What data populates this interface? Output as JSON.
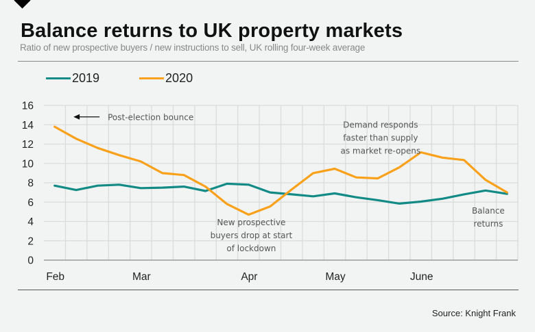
{
  "header": {
    "title": "Balance returns to UK property markets",
    "subtitle": "Ratio of new prospective buyers / new instructions to sell, UK rolling four-week average"
  },
  "legend": [
    {
      "label": "2019",
      "color": "#128a86"
    },
    {
      "label": "2020",
      "color": "#f9a11b"
    }
  ],
  "footer": {
    "source": "Source: Knight Frank"
  },
  "chart_data": {
    "type": "line",
    "title": "Balance returns to UK property markets",
    "subtitle": "Ratio of new prospective buyers / new instructions to sell, UK rolling four-week average",
    "xlabel": "",
    "ylabel": "",
    "ylim": [
      0,
      16
    ],
    "yticks": [
      0,
      2,
      4,
      6,
      8,
      10,
      12,
      14,
      16
    ],
    "grid": true,
    "legend_position": "top-left",
    "x_tick_labels": [
      {
        "index": 0,
        "label": "Feb"
      },
      {
        "index": 4,
        "label": "Mar"
      },
      {
        "index": 9,
        "label": "Apr"
      },
      {
        "index": 13,
        "label": "May"
      },
      {
        "index": 17,
        "label": "June"
      }
    ],
    "num_points": 22,
    "series": [
      {
        "name": "2019",
        "color": "#128a86",
        "values": [
          7.7,
          7.25,
          7.7,
          7.8,
          7.45,
          7.5,
          7.6,
          7.15,
          7.9,
          7.8,
          7.0,
          6.8,
          6.6,
          6.9,
          6.5,
          6.2,
          5.85,
          6.05,
          6.35,
          6.8,
          7.2,
          6.85
        ]
      },
      {
        "name": "2020",
        "color": "#f9a11b",
        "values": [
          13.8,
          12.55,
          11.6,
          10.85,
          10.2,
          9.0,
          8.8,
          7.6,
          5.8,
          4.7,
          5.55,
          7.3,
          9.0,
          9.45,
          8.55,
          8.45,
          9.6,
          11.15,
          10.6,
          10.35,
          8.3,
          7.0
        ]
      }
    ],
    "annotations": [
      {
        "text": [
          "Post-election bounce"
        ],
        "index": 1,
        "y": 14.6,
        "arrow": "left"
      },
      {
        "text": [
          "New prospective",
          "buyers drop at start",
          "of lockdown"
        ],
        "index": 9,
        "y": 3.6
      },
      {
        "text": [
          "Demand responds",
          "faster than supply",
          "as market re-opens"
        ],
        "index": 15,
        "y": 13.7
      },
      {
        "text": [
          "Balance",
          "returns"
        ],
        "index": 20,
        "y": 4.8
      }
    ]
  }
}
